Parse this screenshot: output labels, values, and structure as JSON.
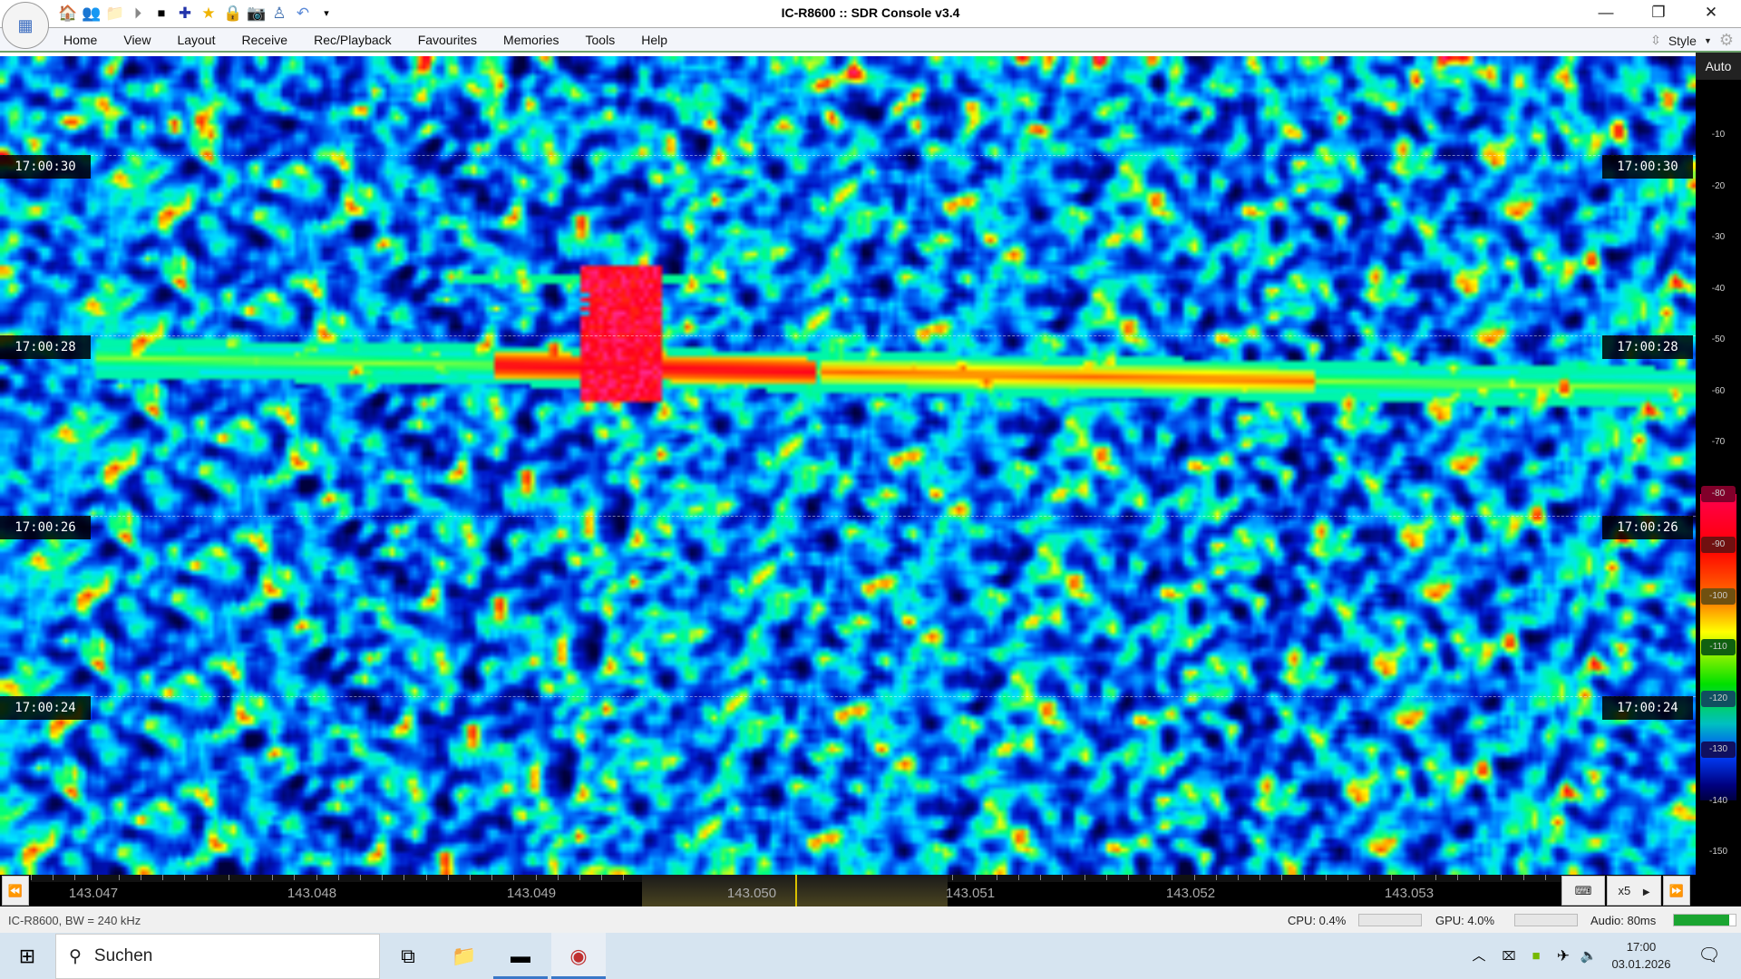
{
  "window": {
    "title": "IC-R8600 :: SDR Console v3.4",
    "minimize": "—",
    "restore": "❐",
    "close": "✕"
  },
  "quick_access": [
    "home-icon",
    "users-icon",
    "folder-icon",
    "play-icon",
    "stop-icon",
    "plus-icon",
    "star-icon",
    "lock-icon",
    "camera-icon",
    "antenna-icon",
    "undo-icon",
    "customize-icon"
  ],
  "menu": {
    "items": [
      "Home",
      "View",
      "Layout",
      "Receive",
      "Rec/Playback",
      "Favourites",
      "Memories",
      "Tools",
      "Help"
    ],
    "style_label": "Style"
  },
  "waterfall": {
    "time_labels": [
      "17:00:30",
      "17:00:28",
      "17:00:26",
      "17:00:24"
    ],
    "signal_color_hex": "#ff2060"
  },
  "scale": {
    "auto_label": "Auto",
    "db_labels": [
      "-10",
      "-20",
      "-30",
      "-40",
      "-50",
      "-60",
      "-70",
      "-80",
      "-90",
      "-100",
      "-110",
      "-120",
      "-130",
      "-140",
      "-150"
    ]
  },
  "frequency": {
    "labels": [
      "143.047",
      "143.048",
      "143.049",
      "143.050",
      "143.051",
      "143.052",
      "143.053"
    ],
    "zoom_label": "x5"
  },
  "status": {
    "device": "IC-R8600, BW = 240 kHz",
    "cpu": "CPU: 0.4%",
    "gpu": "GPU: 4.0%",
    "audio": "Audio: 80ms",
    "audio_color": "#1aa531"
  },
  "taskbar": {
    "search_placeholder": "Suchen",
    "time": "17:00",
    "date": "03.01.2026"
  }
}
